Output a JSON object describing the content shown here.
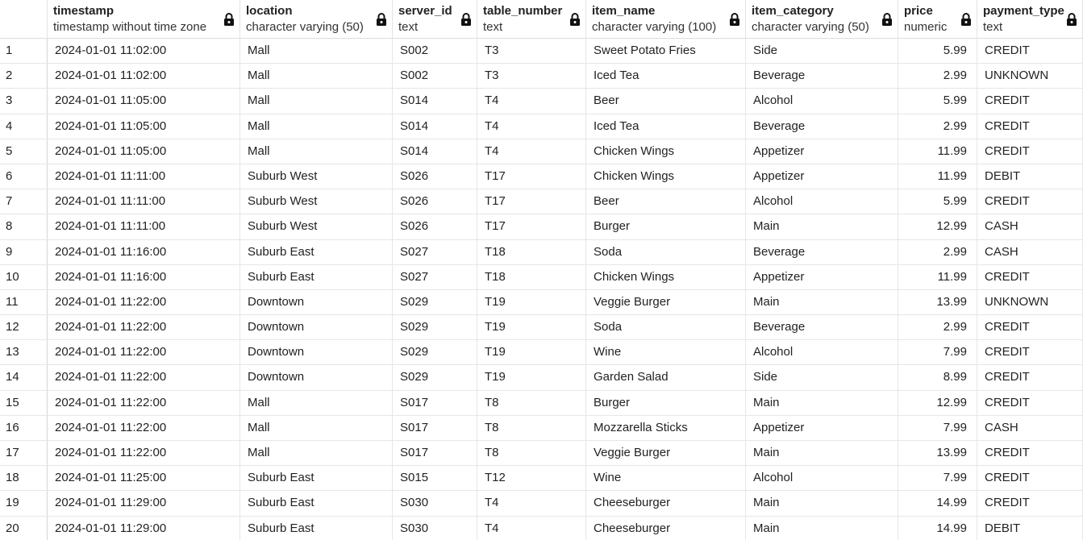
{
  "columns": [
    {
      "name": "timestamp",
      "type": "timestamp without time zone"
    },
    {
      "name": "location",
      "type": "character varying (50)"
    },
    {
      "name": "server_id",
      "type": "text"
    },
    {
      "name": "table_number",
      "type": "text"
    },
    {
      "name": "item_name",
      "type": "character varying (100)"
    },
    {
      "name": "item_category",
      "type": "character varying (50)"
    },
    {
      "name": "price",
      "type": "numeric"
    },
    {
      "name": "payment_type",
      "type": "text"
    }
  ],
  "rows": [
    [
      "1",
      "2024-01-01 11:02:00",
      "Mall",
      "S002",
      "T3",
      "Sweet Potato Fries",
      "Side",
      "5.99",
      "CREDIT"
    ],
    [
      "2",
      "2024-01-01 11:02:00",
      "Mall",
      "S002",
      "T3",
      "Iced Tea",
      "Beverage",
      "2.99",
      "UNKNOWN"
    ],
    [
      "3",
      "2024-01-01 11:05:00",
      "Mall",
      "S014",
      "T4",
      "Beer",
      "Alcohol",
      "5.99",
      "CREDIT"
    ],
    [
      "4",
      "2024-01-01 11:05:00",
      "Mall",
      "S014",
      "T4",
      "Iced Tea",
      "Beverage",
      "2.99",
      "CREDIT"
    ],
    [
      "5",
      "2024-01-01 11:05:00",
      "Mall",
      "S014",
      "T4",
      "Chicken Wings",
      "Appetizer",
      "11.99",
      "CREDIT"
    ],
    [
      "6",
      "2024-01-01 11:11:00",
      "Suburb West",
      "S026",
      "T17",
      "Chicken Wings",
      "Appetizer",
      "11.99",
      "DEBIT"
    ],
    [
      "7",
      "2024-01-01 11:11:00",
      "Suburb West",
      "S026",
      "T17",
      "Beer",
      "Alcohol",
      "5.99",
      "CREDIT"
    ],
    [
      "8",
      "2024-01-01 11:11:00",
      "Suburb West",
      "S026",
      "T17",
      "Burger",
      "Main",
      "12.99",
      "CASH"
    ],
    [
      "9",
      "2024-01-01 11:16:00",
      "Suburb East",
      "S027",
      "T18",
      "Soda",
      "Beverage",
      "2.99",
      "CASH"
    ],
    [
      "10",
      "2024-01-01 11:16:00",
      "Suburb East",
      "S027",
      "T18",
      "Chicken Wings",
      "Appetizer",
      "11.99",
      "CREDIT"
    ],
    [
      "11",
      "2024-01-01 11:22:00",
      "Downtown",
      "S029",
      "T19",
      "Veggie Burger",
      "Main",
      "13.99",
      "UNKNOWN"
    ],
    [
      "12",
      "2024-01-01 11:22:00",
      "Downtown",
      "S029",
      "T19",
      "Soda",
      "Beverage",
      "2.99",
      "CREDIT"
    ],
    [
      "13",
      "2024-01-01 11:22:00",
      "Downtown",
      "S029",
      "T19",
      "Wine",
      "Alcohol",
      "7.99",
      "CREDIT"
    ],
    [
      "14",
      "2024-01-01 11:22:00",
      "Downtown",
      "S029",
      "T19",
      "Garden Salad",
      "Side",
      "8.99",
      "CREDIT"
    ],
    [
      "15",
      "2024-01-01 11:22:00",
      "Mall",
      "S017",
      "T8",
      "Burger",
      "Main",
      "12.99",
      "CREDIT"
    ],
    [
      "16",
      "2024-01-01 11:22:00",
      "Mall",
      "S017",
      "T8",
      "Mozzarella Sticks",
      "Appetizer",
      "7.99",
      "CASH"
    ],
    [
      "17",
      "2024-01-01 11:22:00",
      "Mall",
      "S017",
      "T8",
      "Veggie Burger",
      "Main",
      "13.99",
      "CREDIT"
    ],
    [
      "18",
      "2024-01-01 11:25:00",
      "Suburb East",
      "S015",
      "T12",
      "Wine",
      "Alcohol",
      "7.99",
      "CREDIT"
    ],
    [
      "19",
      "2024-01-01 11:29:00",
      "Suburb East",
      "S030",
      "T4",
      "Cheeseburger",
      "Main",
      "14.99",
      "CREDIT"
    ],
    [
      "20",
      "2024-01-01 11:29:00",
      "Suburb East",
      "S030",
      "T4",
      "Cheeseburger",
      "Main",
      "14.99",
      "DEBIT"
    ]
  ],
  "icons": {
    "column_lock": "lock-icon"
  }
}
